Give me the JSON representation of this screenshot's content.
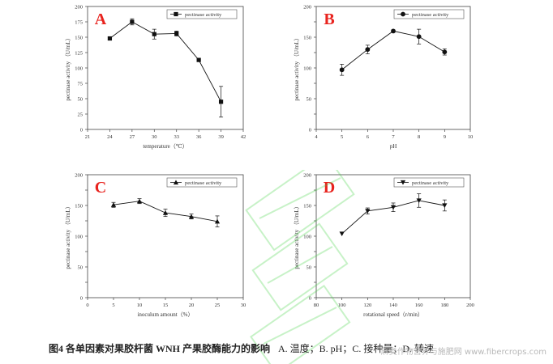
{
  "caption": {
    "figure_title": "图4 各单因素对果胶杆菌 WNH 产果胶酶能力的影响",
    "subtitle": "A. 温度；B. pH；C. 接种量；D. 转速"
  },
  "site_text": "麻类作物营养与施肥网 www.fibercrops.com",
  "chart_data": [
    {
      "type": "line",
      "panel_label": "A",
      "marker": "square",
      "legend": {
        "label": "pectinase activity",
        "position": "top-right"
      },
      "xlabel": "temperature（℃）",
      "ylabel": "pectinase activity （U/mL）",
      "xlim": [
        21,
        42
      ],
      "ylim": [
        0,
        200
      ],
      "xticks": [
        21,
        24,
        27,
        30,
        33,
        36,
        39,
        42
      ],
      "yticks": [
        0,
        25,
        50,
        75,
        100,
        125,
        150,
        175,
        200
      ],
      "series": [
        {
          "name": "pectinase activity",
          "x": [
            24,
            27,
            30,
            33,
            36,
            39
          ],
          "y": [
            148,
            175,
            155,
            156,
            113,
            45
          ],
          "err": [
            2,
            5,
            8,
            4,
            0,
            25
          ]
        }
      ]
    },
    {
      "type": "line",
      "panel_label": "B",
      "marker": "circle",
      "legend": {
        "label": "pectinase activity",
        "position": "top-right"
      },
      "xlabel": "pH",
      "ylabel": "pectinase activity （U/mL）",
      "xlim": [
        4,
        10
      ],
      "ylim": [
        0,
        200
      ],
      "xticks": [
        4,
        5,
        6,
        7,
        8,
        9,
        10
      ],
      "yticks": [
        0,
        50,
        100,
        150,
        200
      ],
      "series": [
        {
          "name": "pectinase activity",
          "x": [
            5,
            6,
            7,
            8,
            9
          ],
          "y": [
            97,
            130,
            160,
            151,
            126
          ],
          "err": [
            9,
            7,
            2,
            12,
            5
          ]
        }
      ]
    },
    {
      "type": "line",
      "panel_label": "C",
      "marker": "triangle-up",
      "legend": {
        "label": "pectinase activity",
        "position": "top-right"
      },
      "xlabel": "inoculum amount（%）",
      "ylabel": "pectinase activity （U/mL）",
      "xlim": [
        0,
        30
      ],
      "ylim": [
        0,
        200
      ],
      "xticks": [
        0,
        5,
        10,
        15,
        20,
        25,
        30
      ],
      "yticks": [
        0,
        50,
        100,
        150,
        200
      ],
      "series": [
        {
          "name": "pectinase activity",
          "x": [
            5,
            10,
            15,
            20,
            25
          ],
          "y": [
            151,
            157,
            138,
            132,
            124
          ],
          "err": [
            4,
            4,
            6,
            4,
            9
          ]
        }
      ]
    },
    {
      "type": "line",
      "panel_label": "D",
      "marker": "triangle-down",
      "legend": {
        "label": "pectinase activity",
        "position": "top-right"
      },
      "xlabel": "rotational speed（r/min）",
      "ylabel": "pectinase activity （U/mL）",
      "xlim": [
        80,
        200
      ],
      "ylim": [
        0,
        200
      ],
      "xticks": [
        80,
        100,
        120,
        140,
        160,
        180,
        200
      ],
      "yticks": [
        0,
        50,
        100,
        150,
        200
      ],
      "series": [
        {
          "name": "pectinase activity",
          "x": [
            100,
            120,
            140,
            160,
            180
          ],
          "y": [
            104,
            141,
            147,
            158,
            150
          ],
          "err": [
            0,
            5,
            7,
            11,
            9
          ]
        }
      ]
    }
  ]
}
